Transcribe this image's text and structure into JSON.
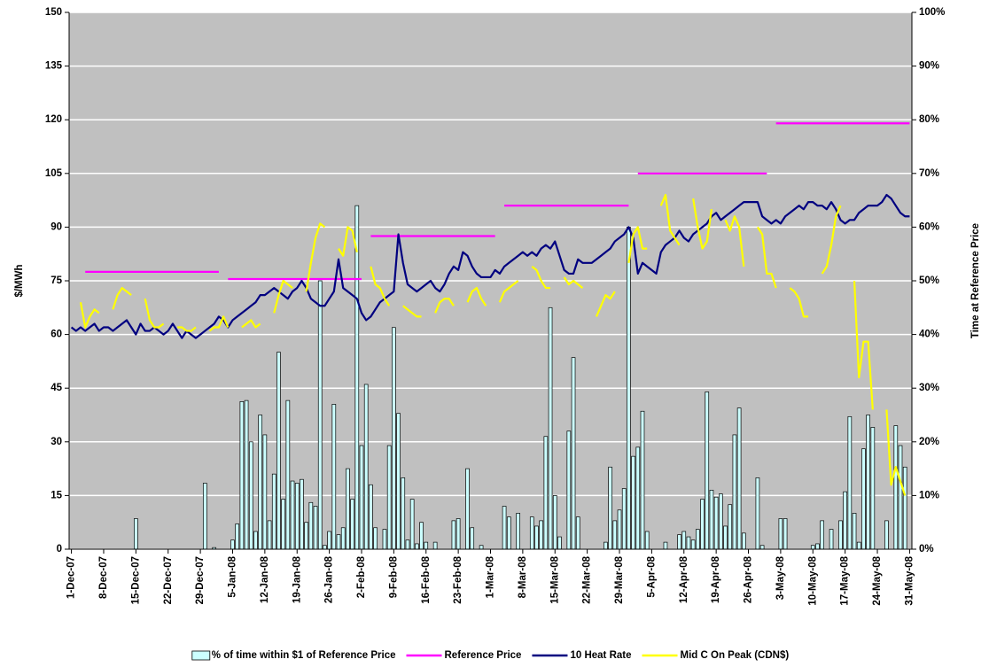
{
  "chart_data": {
    "type": "bar",
    "y_label": "$/MWh",
    "y2_label": "Time at Reference Price",
    "ylim": [
      0,
      150
    ],
    "yticks": [
      0,
      15,
      30,
      45,
      60,
      75,
      90,
      105,
      120,
      135,
      150
    ],
    "y2lim": [
      0,
      100
    ],
    "y2ticks": [
      {
        "value": 0,
        "label": "0%"
      },
      {
        "value": 10,
        "label": "10%"
      },
      {
        "value": 20,
        "label": "20%"
      },
      {
        "value": 30,
        "label": "30%"
      },
      {
        "value": 40,
        "label": "40%"
      },
      {
        "value": 50,
        "label": "50%"
      },
      {
        "value": 60,
        "label": "60%"
      },
      {
        "value": 70,
        "label": "70%"
      },
      {
        "value": 80,
        "label": "80%"
      },
      {
        "value": 90,
        "label": "90%"
      },
      {
        "value": 100,
        "label": "100%"
      }
    ],
    "grid": true,
    "background": "#c0c0c0",
    "legend": "bottom",
    "categories": [
      "1-Dec-07",
      null,
      null,
      null,
      null,
      null,
      null,
      "8-Dec-07",
      null,
      null,
      null,
      null,
      null,
      null,
      "15-Dec-07",
      null,
      null,
      null,
      null,
      null,
      null,
      "22-Dec-07",
      null,
      null,
      null,
      null,
      null,
      null,
      "29-Dec-07",
      null,
      null,
      null,
      null,
      null,
      null,
      "5-Jan-08",
      null,
      null,
      null,
      null,
      null,
      null,
      "12-Jan-08",
      null,
      null,
      null,
      null,
      null,
      null,
      "19-Jan-08",
      null,
      null,
      null,
      null,
      null,
      null,
      "26-Jan-08",
      null,
      null,
      null,
      null,
      null,
      null,
      "2-Feb-08",
      null,
      null,
      null,
      null,
      null,
      null,
      "9-Feb-08",
      null,
      null,
      null,
      null,
      null,
      null,
      "16-Feb-08",
      null,
      null,
      null,
      null,
      null,
      null,
      "23-Feb-08",
      null,
      null,
      null,
      null,
      null,
      null,
      "1-Mar-08",
      null,
      null,
      null,
      null,
      null,
      null,
      "8-Mar-08",
      null,
      null,
      null,
      null,
      null,
      null,
      "15-Mar-08",
      null,
      null,
      null,
      null,
      null,
      null,
      "22-Mar-08",
      null,
      null,
      null,
      null,
      null,
      null,
      "29-Mar-08",
      null,
      null,
      null,
      null,
      null,
      null,
      "5-Apr-08",
      null,
      null,
      null,
      null,
      null,
      null,
      "12-Apr-08",
      null,
      null,
      null,
      null,
      null,
      null,
      "19-Apr-08",
      null,
      null,
      null,
      null,
      null,
      null,
      "26-Apr-08",
      null,
      null,
      null,
      null,
      null,
      null,
      "3-May-08",
      null,
      null,
      null,
      null,
      null,
      null,
      "10-May-08",
      null,
      null,
      null,
      null,
      null,
      null,
      "17-May-08",
      null,
      null,
      null,
      null,
      null,
      null,
      "24-May-08",
      null,
      null,
      null,
      null,
      null,
      null,
      "31-May-08"
    ],
    "series": [
      {
        "name": "% of time within $1 of Reference Price",
        "type": "bar",
        "axis": "y2",
        "color": "#ccffff",
        "values": [
          0,
          0,
          0,
          0,
          0,
          0,
          0,
          0,
          0,
          0,
          0,
          0,
          0,
          0,
          5.7,
          0,
          0,
          0,
          0,
          0,
          0,
          0,
          0,
          0,
          0,
          0,
          0,
          0,
          0,
          12.3,
          0,
          0.3,
          0,
          0,
          0,
          1.7,
          4.7,
          27.5,
          27.7,
          20,
          3.3,
          25,
          21.3,
          5.3,
          14,
          36.7,
          9.3,
          27.7,
          12.7,
          12.3,
          13,
          5,
          8.7,
          8,
          50,
          0.7,
          3.3,
          27,
          2.7,
          4,
          15,
          9.3,
          64,
          19.3,
          30.7,
          12,
          4,
          0,
          3.7,
          19.3,
          41.3,
          25.3,
          13.3,
          1.7,
          9.3,
          1,
          5,
          1.3,
          0,
          1.3,
          0,
          0,
          0,
          5.3,
          5.7,
          0,
          15,
          4,
          0,
          0.7,
          0,
          0,
          0,
          0,
          8,
          6,
          0,
          6.7,
          0,
          0,
          6,
          4.3,
          5.3,
          21,
          45,
          10,
          2.3,
          0,
          22,
          35.7,
          6,
          0,
          0,
          0,
          0,
          0,
          1.3,
          15.3,
          5.3,
          7.3,
          11.3,
          60,
          17.3,
          19,
          25.7,
          3.3,
          0,
          0,
          0,
          1.3,
          0,
          0,
          2.7,
          3.3,
          2.3,
          1.7,
          3.7,
          9.3,
          29.3,
          11,
          9.7,
          10.3,
          4.3,
          8.3,
          21.3,
          26.3,
          3,
          0,
          0,
          13.3,
          0.7,
          0,
          0,
          0,
          5.7,
          5.7,
          0,
          0,
          0,
          0,
          0,
          0.7,
          1,
          5.3,
          0,
          3.7,
          0,
          5.3,
          10.7,
          24.7,
          6.7,
          1.3,
          18.7,
          25,
          22.7,
          0,
          0,
          5.3,
          0,
          23,
          19.3,
          15.3,
          0
        ]
      },
      {
        "name": "Reference Price",
        "type": "line",
        "color": "#ff00ff",
        "values": [
          null,
          null,
          null,
          77.5,
          77.5,
          77.5,
          77.5,
          77.5,
          77.5,
          77.5,
          77.5,
          77.5,
          77.5,
          77.5,
          77.5,
          77.5,
          77.5,
          77.5,
          77.5,
          77.5,
          77.5,
          77.5,
          77.5,
          77.5,
          77.5,
          77.5,
          77.5,
          77.5,
          77.5,
          77.5,
          77.5,
          77.5,
          77.5,
          null,
          75.5,
          75.5,
          75.5,
          75.5,
          75.5,
          75.5,
          75.5,
          75.5,
          75.5,
          75.5,
          75.5,
          75.5,
          75.5,
          75.5,
          75.5,
          75.5,
          75.5,
          75.5,
          75.5,
          75.5,
          75.5,
          75.5,
          75.5,
          75.5,
          75.5,
          75.5,
          75.5,
          75.5,
          75.5,
          75.5,
          null,
          87.5,
          87.5,
          87.5,
          87.5,
          87.5,
          87.5,
          87.5,
          87.5,
          87.5,
          87.5,
          87.5,
          87.5,
          87.5,
          87.5,
          87.5,
          87.5,
          87.5,
          87.5,
          87.5,
          87.5,
          87.5,
          87.5,
          87.5,
          87.5,
          87.5,
          87.5,
          87.5,
          87.5,
          null,
          96,
          96,
          96,
          96,
          96,
          96,
          96,
          96,
          96,
          96,
          96,
          96,
          96,
          96,
          96,
          96,
          96,
          96,
          96,
          96,
          96,
          96,
          96,
          96,
          96,
          96,
          96,
          96,
          null,
          105,
          105,
          105,
          105,
          105,
          105,
          105,
          105,
          105,
          105,
          105,
          105,
          105,
          105,
          105,
          105,
          105,
          105,
          105,
          105,
          105,
          105,
          105,
          105,
          105,
          105,
          105,
          105,
          105,
          null,
          119,
          119,
          119,
          119,
          119,
          119,
          119,
          119,
          119,
          119,
          119,
          119,
          119,
          119,
          119,
          119,
          119,
          119,
          119,
          119,
          119,
          119,
          119,
          119,
          119,
          119,
          119,
          119,
          119,
          119
        ]
      },
      {
        "name": "10 Heat Rate",
        "type": "line",
        "color": "#000080",
        "values": [
          62,
          61,
          62,
          61,
          62,
          63,
          61,
          62,
          62,
          61,
          62,
          63,
          64,
          62,
          60,
          63,
          61,
          61,
          62,
          61,
          60,
          61,
          63,
          61,
          59,
          61,
          60,
          59,
          60,
          61,
          62,
          63,
          65,
          64,
          62,
          64,
          65,
          66,
          67,
          68,
          69,
          71,
          71,
          72,
          73,
          72,
          71,
          70,
          72,
          73,
          75,
          73,
          70,
          69,
          68,
          68,
          70,
          72,
          81,
          73,
          72,
          71,
          70,
          66,
          64,
          65,
          67,
          69,
          70,
          71,
          72,
          88,
          80,
          74,
          73,
          72,
          73,
          74,
          75,
          73,
          72,
          74,
          77,
          79,
          78,
          83,
          82,
          79,
          77,
          76,
          76,
          76,
          78,
          77,
          79,
          80,
          81,
          82,
          83,
          82,
          83,
          82,
          84,
          85,
          84,
          86,
          82,
          78,
          77,
          77,
          81,
          80,
          80,
          80,
          81,
          82,
          83,
          84,
          86,
          87,
          88,
          90,
          87,
          77,
          80,
          79,
          78,
          77,
          83,
          85,
          86,
          87,
          89,
          87,
          86,
          88,
          89,
          90,
          91,
          93,
          94,
          92,
          93,
          94,
          95,
          96,
          97,
          97,
          97,
          97,
          93,
          92,
          91,
          92,
          91,
          93,
          94,
          95,
          96,
          95,
          97,
          97,
          96,
          96,
          95,
          97,
          95,
          92,
          91,
          92,
          92,
          94,
          95,
          96,
          96,
          96,
          97,
          99,
          98,
          96,
          94,
          93,
          93
        ]
      },
      {
        "name": "Mid C On Peak (CDN$)",
        "type": "line",
        "color": "#ffff00",
        "values": [
          null,
          null,
          69,
          62,
          65,
          67,
          66,
          null,
          null,
          67,
          71,
          73,
          72,
          71,
          null,
          null,
          70,
          64,
          62,
          62,
          63,
          null,
          null,
          62,
          62,
          61,
          61,
          62,
          null,
          null,
          61,
          62,
          62,
          65,
          62,
          null,
          null,
          62,
          63,
          64,
          62,
          63,
          null,
          null,
          66,
          71,
          75,
          74,
          73,
          null,
          null,
          72,
          80,
          87,
          91,
          90,
          null,
          null,
          84,
          82,
          90,
          89,
          83,
          null,
          null,
          79,
          74,
          73,
          70,
          68,
          null,
          null,
          68,
          67,
          66,
          65,
          65,
          null,
          null,
          66,
          69,
          70,
          70,
          68,
          null,
          null,
          69,
          72,
          73,
          70,
          68,
          null,
          null,
          69,
          72,
          73,
          74,
          75,
          null,
          null,
          79,
          78,
          75,
          73,
          73,
          null,
          null,
          76,
          74,
          75,
          74,
          73,
          null,
          null,
          65,
          68,
          71,
          70,
          72,
          null,
          null,
          80,
          88,
          90,
          84,
          84,
          null,
          null,
          96,
          99,
          89,
          87,
          85,
          null,
          null,
          98,
          90,
          84,
          86,
          95,
          null,
          null,
          92,
          89,
          93,
          90,
          79,
          null,
          null,
          90,
          88,
          77,
          77,
          73,
          null,
          null,
          73,
          72,
          70,
          65,
          65,
          null,
          null,
          77,
          79,
          85,
          93,
          96,
          null,
          null,
          75,
          48,
          58,
          58,
          39,
          null,
          null,
          39,
          18,
          23,
          19,
          15,
          null
        ]
      }
    ]
  }
}
